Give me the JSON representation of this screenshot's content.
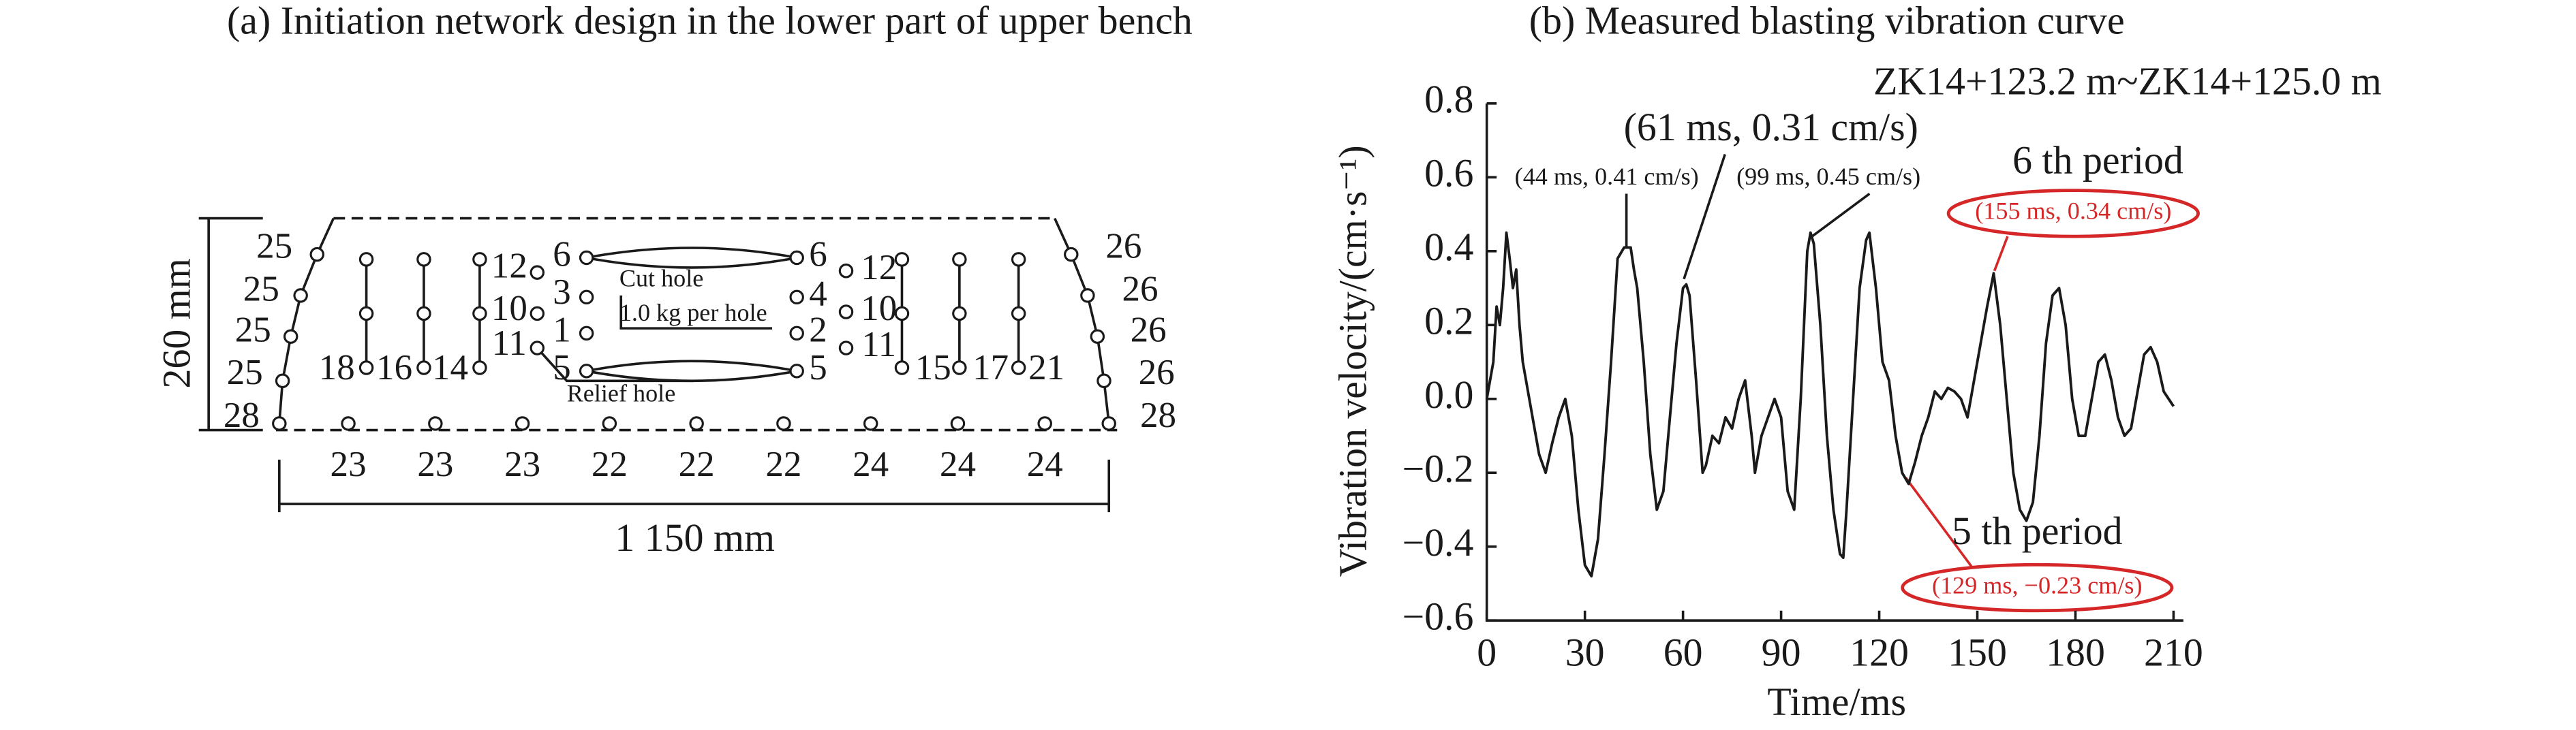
{
  "panel_a": {
    "title": "(a) Initiation network design in the lower part of upper bench",
    "height_label": "260 mm",
    "width_label": "1 150 mm",
    "notes": [
      "Cut hole",
      "1.0 kg per hole",
      "Relief hole"
    ],
    "side_labels": [
      "25",
      "25",
      "25",
      "25",
      "28",
      "26",
      "26",
      "26",
      "26",
      "28"
    ],
    "inner_labels": [
      "18",
      "16",
      "14",
      "12",
      "10",
      "11",
      "6",
      "3",
      "1",
      "5",
      "6",
      "4",
      "2",
      "5",
      "12",
      "10",
      "11",
      "15",
      "17",
      "21"
    ],
    "bottom_labels": [
      "23",
      "23",
      "23",
      "22",
      "22",
      "22",
      "24",
      "24",
      "24"
    ]
  },
  "chart_data": {
    "type": "line",
    "title": "(b) Measured blasting vibration curve",
    "subtitle": "ZK14+123.2 m~ZK14+125.0 m",
    "x_label": "Time/ms",
    "y_label": "Vibration velocity/(cm·s⁻¹)",
    "xlim": [
      0,
      213
    ],
    "xticks": [
      0,
      30,
      60,
      90,
      120,
      150,
      180,
      210
    ],
    "ylim": [
      -0.6,
      0.8
    ],
    "yticks": [
      {
        "value": -0.6,
        "label": "−0.6"
      },
      {
        "value": -0.4,
        "label": "−0.4"
      },
      {
        "value": -0.2,
        "label": "−0.2"
      },
      {
        "value": 0,
        "label": "0.0"
      },
      0.2,
      0.4,
      0.6,
      0.8
    ],
    "annotations": [
      "(61 ms, 0.31 cm/s)",
      "(44 ms, 0.41 cm/s)",
      "(99 ms, 0.45 cm/s)",
      "6 th period",
      "(155 ms, 0.34 cm/s)",
      "5 th period",
      "(129 ms, −0.23 cm/s)"
    ],
    "x": [
      0,
      2,
      3,
      4,
      5,
      6,
      7,
      8,
      9,
      10,
      11,
      12,
      14,
      16,
      18,
      20,
      22,
      24,
      26,
      28,
      30,
      32,
      34,
      36,
      38,
      40,
      42,
      44,
      45,
      46,
      48,
      50,
      52,
      54,
      56,
      58,
      60,
      61,
      62,
      64,
      66,
      67,
      69,
      71,
      73,
      75,
      77,
      79,
      81,
      82,
      84,
      86,
      88,
      90,
      92,
      94,
      96,
      98,
      99,
      100,
      102,
      104,
      106,
      108,
      109,
      110,
      112,
      114,
      116,
      117,
      119,
      121,
      123,
      125,
      127,
      129,
      131,
      133,
      135,
      137,
      139,
      141,
      143,
      145,
      147,
      149,
      151,
      153,
      155,
      157,
      159,
      161,
      163,
      165,
      167,
      169,
      171,
      173,
      175,
      177,
      179,
      181,
      183,
      185,
      187,
      189,
      191,
      193,
      195,
      197,
      199,
      201,
      203,
      205,
      207,
      210
    ],
    "series": [
      {
        "name": "velocity",
        "color": "#1a1a1a",
        "values": [
          0,
          0.1,
          0.25,
          0.2,
          0.3,
          0.45,
          0.38,
          0.3,
          0.35,
          0.2,
          0.1,
          0.05,
          -0.05,
          -0.15,
          -0.2,
          -0.12,
          -0.05,
          0,
          -0.1,
          -0.3,
          -0.45,
          -0.48,
          -0.38,
          -0.15,
          0.1,
          0.38,
          0.41,
          0.41,
          0.35,
          0.3,
          0.1,
          -0.15,
          -0.3,
          -0.25,
          -0.05,
          0.15,
          0.3,
          0.31,
          0.28,
          0.05,
          -0.2,
          -0.18,
          -0.1,
          -0.12,
          -0.05,
          -0.08,
          0,
          0.05,
          -0.1,
          -0.2,
          -0.1,
          -0.05,
          0,
          -0.05,
          -0.25,
          -0.3,
          0,
          0.4,
          0.45,
          0.42,
          0.2,
          -0.1,
          -0.3,
          -0.42,
          -0.43,
          -0.3,
          0,
          0.3,
          0.43,
          0.45,
          0.3,
          0.1,
          0.05,
          -0.1,
          -0.2,
          -0.23,
          -0.17,
          -0.1,
          -0.05,
          0.02,
          0,
          0.03,
          0.02,
          0,
          -0.05,
          0.05,
          0.15,
          0.25,
          0.34,
          0.2,
          0,
          -0.2,
          -0.3,
          -0.33,
          -0.28,
          -0.1,
          0.15,
          0.28,
          0.3,
          0.2,
          0,
          -0.1,
          -0.1,
          0,
          0.1,
          0.12,
          0.05,
          -0.05,
          -0.1,
          -0.08,
          0.02,
          0.12,
          0.14,
          0.1,
          0.02,
          -0.02
        ]
      }
    ]
  }
}
